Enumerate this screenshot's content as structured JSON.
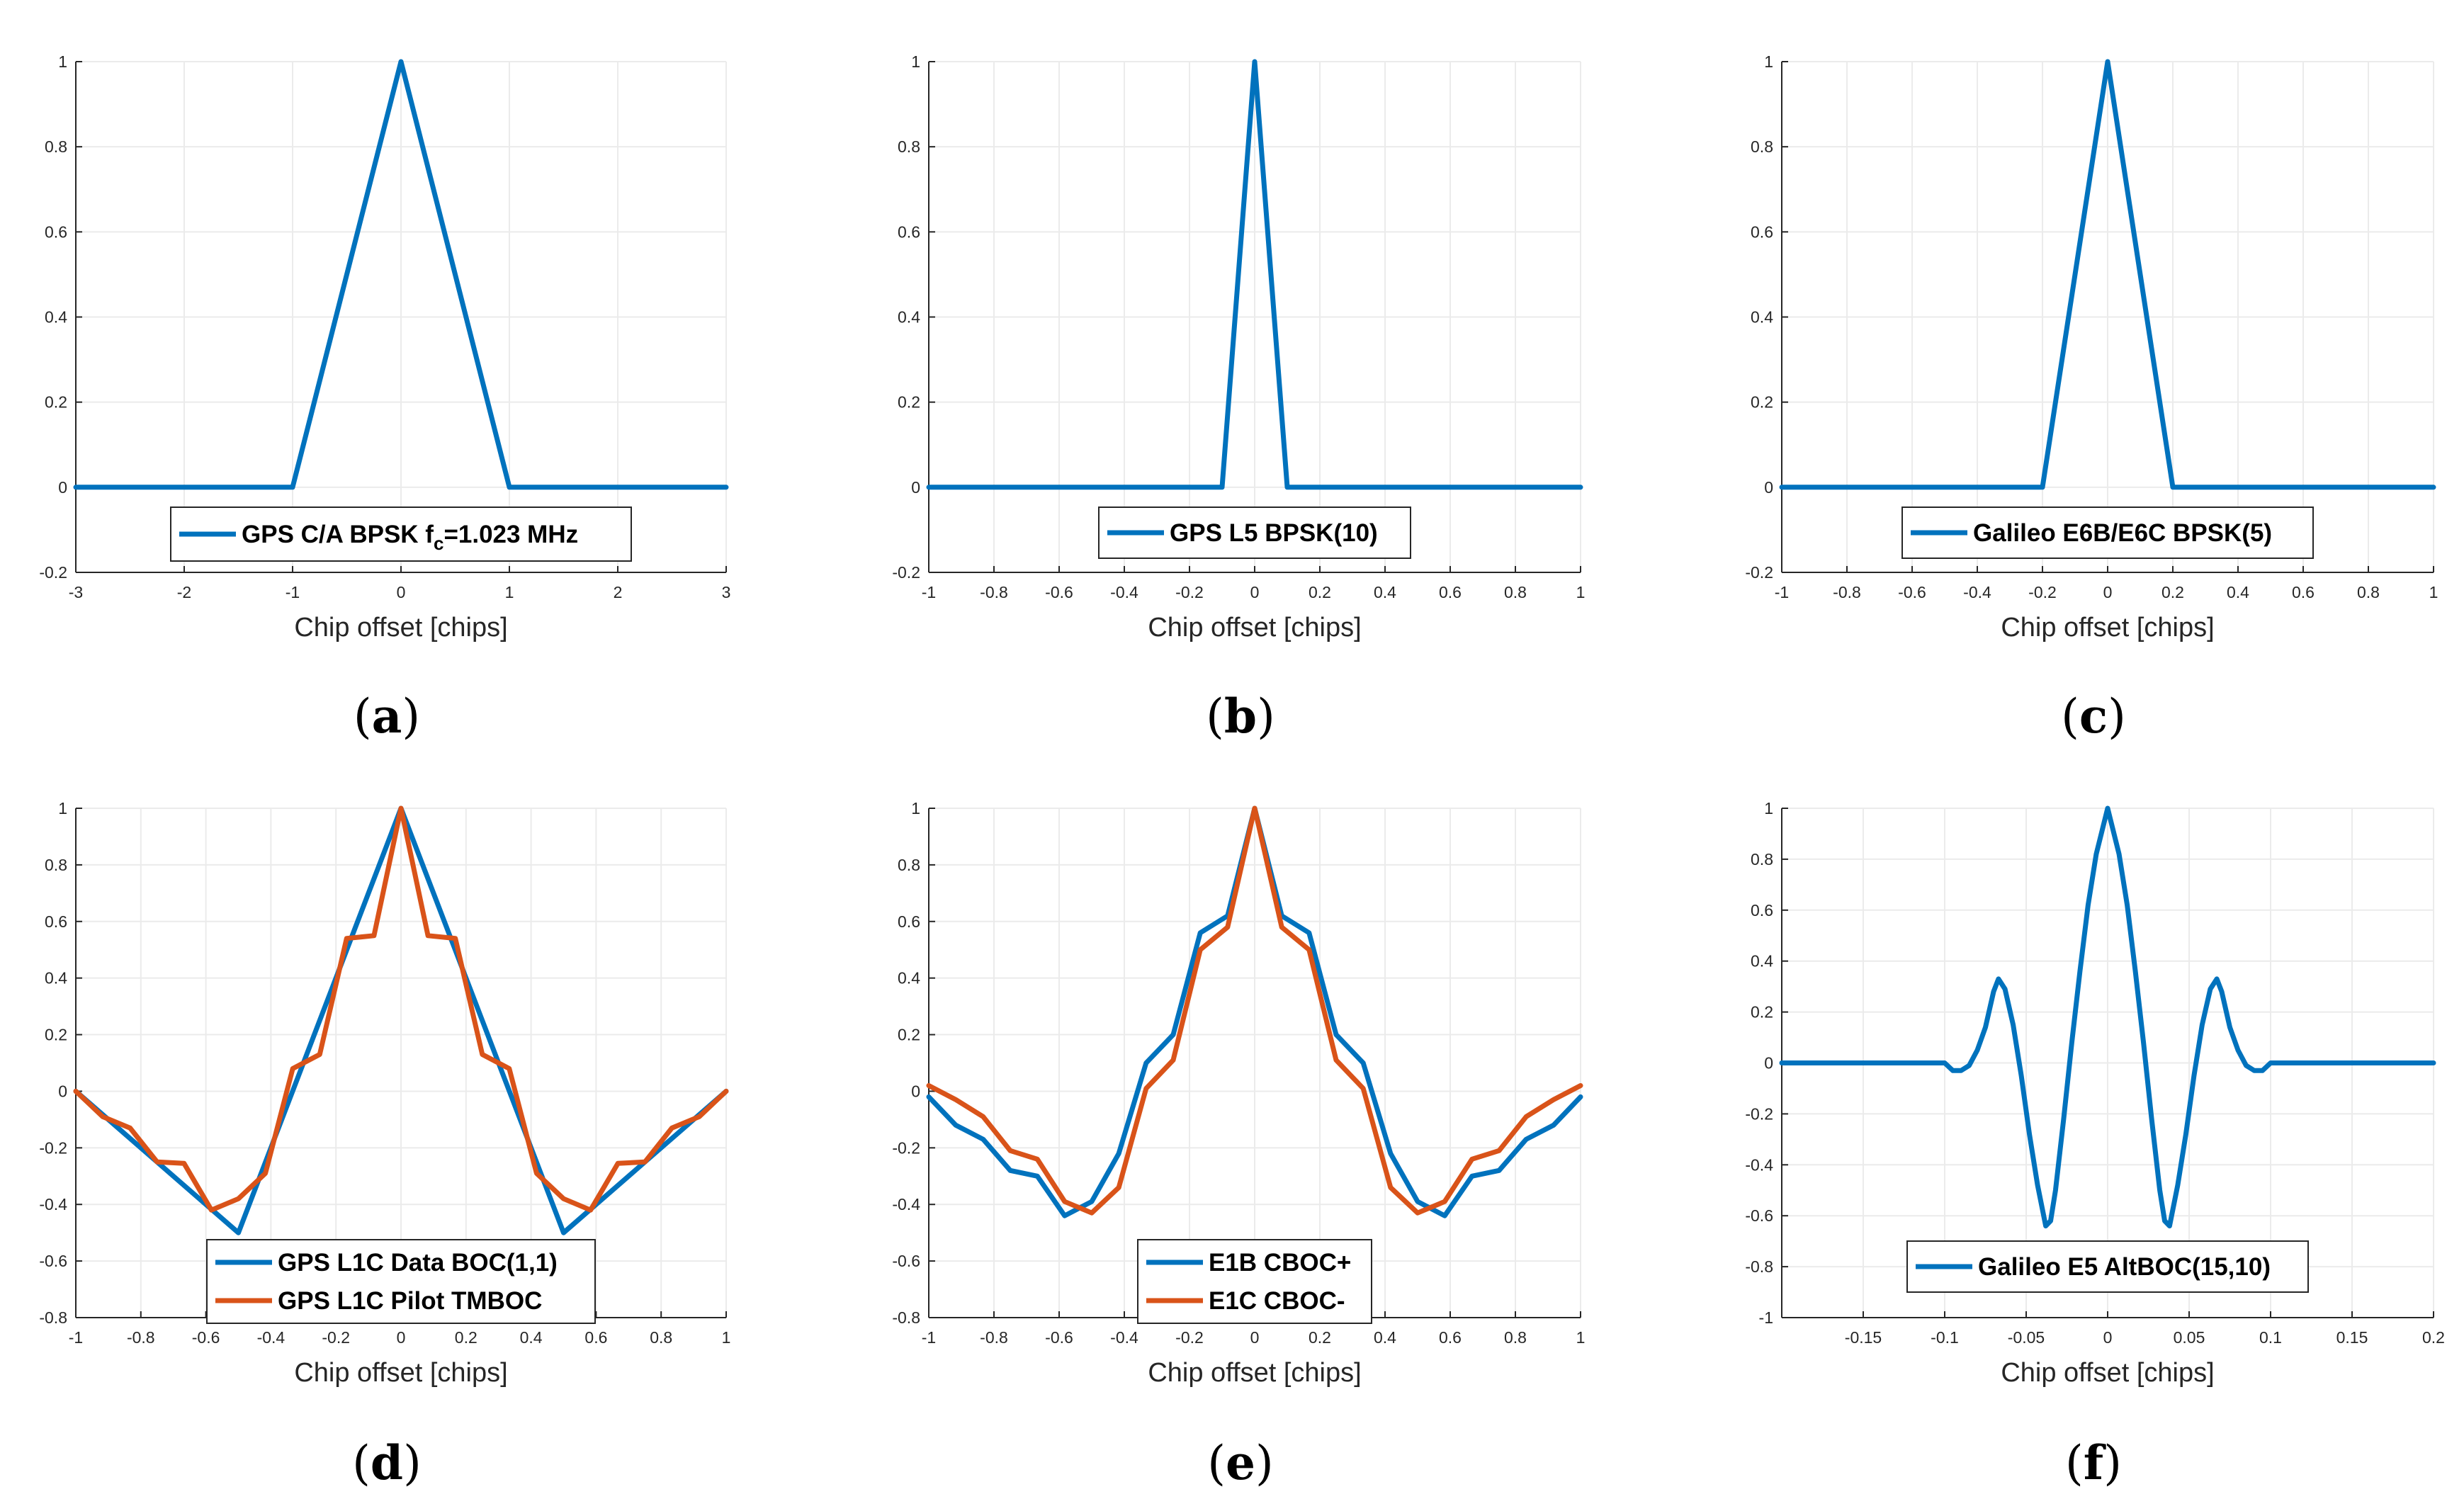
{
  "figure": {
    "colors": {
      "series1": "#0072BD",
      "series2": "#D95319",
      "axis": "#262626",
      "grid": "#ebebeb"
    }
  },
  "chart_data": [
    {
      "id": "a",
      "type": "line",
      "caption": {
        "open": "(",
        "letter": "a",
        "close": ")"
      },
      "xlabel": "Chip offset [chips]",
      "ylabel": "",
      "xlim": [
        -3,
        3
      ],
      "ylim": [
        -0.2,
        1
      ],
      "xticks": [
        -3,
        -2,
        -1,
        0,
        1,
        2,
        3
      ],
      "yticks": [
        -0.2,
        0,
        0.2,
        0.4,
        0.6,
        0.8,
        1
      ],
      "grid": true,
      "legend_position": "bottom-center",
      "series": [
        {
          "name": "GPS C/A BPSK f_c=1.023 MHz",
          "legend": {
            "before": "GPS C/A BPSK f",
            "sub": "c",
            "after": "=1.023 MHz"
          },
          "color": "#0072BD",
          "x": [
            -3,
            -1,
            0,
            1,
            3
          ],
          "y": [
            0,
            0,
            1,
            0,
            0
          ]
        }
      ]
    },
    {
      "id": "b",
      "type": "line",
      "caption": {
        "open": "(",
        "letter": "b",
        "close": ")"
      },
      "xlabel": "Chip offset [chips]",
      "ylabel": "",
      "xlim": [
        -1,
        1
      ],
      "ylim": [
        -0.2,
        1
      ],
      "xticks": [
        -1,
        -0.8,
        -0.6,
        -0.4,
        -0.2,
        0,
        0.2,
        0.4,
        0.6,
        0.8,
        1
      ],
      "yticks": [
        -0.2,
        0,
        0.2,
        0.4,
        0.6,
        0.8,
        1
      ],
      "grid": true,
      "legend_position": "bottom-center",
      "series": [
        {
          "name": "GPS L5 BPSK(10)",
          "color": "#0072BD",
          "x": [
            -1,
            -0.1,
            0,
            0.1,
            1
          ],
          "y": [
            0,
            0,
            1,
            0,
            0
          ]
        }
      ]
    },
    {
      "id": "c",
      "type": "line",
      "caption": {
        "open": "(",
        "letter": "c",
        "close": ")"
      },
      "xlabel": "Chip offset [chips]",
      "ylabel": "",
      "xlim": [
        -1,
        1
      ],
      "ylim": [
        -0.2,
        1
      ],
      "xticks": [
        -1,
        -0.8,
        -0.6,
        -0.4,
        -0.2,
        0,
        0.2,
        0.4,
        0.6,
        0.8,
        1
      ],
      "yticks": [
        -0.2,
        0,
        0.2,
        0.4,
        0.6,
        0.8,
        1
      ],
      "grid": true,
      "legend_position": "bottom-center",
      "series": [
        {
          "name": "Galileo E6B/E6C BPSK(5)",
          "color": "#0072BD",
          "x": [
            -1,
            -0.2,
            0,
            0.2,
            1
          ],
          "y": [
            0,
            0,
            1,
            0,
            0
          ]
        }
      ]
    },
    {
      "id": "d",
      "type": "line",
      "caption": {
        "open": "(",
        "letter": "d",
        "close": ")"
      },
      "xlabel": "Chip offset [chips]",
      "ylabel": "",
      "xlim": [
        -1,
        1
      ],
      "ylim": [
        -0.8,
        1
      ],
      "xticks": [
        -1,
        -0.8,
        -0.6,
        -0.4,
        -0.2,
        0,
        0.2,
        0.4,
        0.6,
        0.8,
        1
      ],
      "yticks": [
        -0.8,
        -0.6,
        -0.4,
        -0.2,
        0,
        0.2,
        0.4,
        0.6,
        0.8,
        1
      ],
      "grid": true,
      "legend_position": "bottom-center",
      "series": [
        {
          "name": "GPS L1C Data BOC(1,1)",
          "color": "#0072BD",
          "x": [
            -1,
            -0.5,
            0,
            0.5,
            1
          ],
          "y": [
            0,
            -0.5,
            1,
            -0.5,
            0
          ]
        },
        {
          "name": "GPS L1C Pilot TMBOC",
          "color": "#D95319",
          "x": [
            -1,
            -0.917,
            -0.833,
            -0.75,
            -0.667,
            -0.583,
            -0.5,
            -0.417,
            -0.333,
            -0.25,
            -0.167,
            -0.083,
            0,
            0.083,
            0.167,
            0.25,
            0.333,
            0.417,
            0.5,
            0.583,
            0.667,
            0.75,
            0.833,
            0.917,
            1
          ],
          "y": [
            0,
            -0.09,
            -0.13,
            -0.25,
            -0.255,
            -0.42,
            -0.38,
            -0.29,
            0.08,
            0.13,
            0.54,
            0.55,
            1,
            0.55,
            0.54,
            0.13,
            0.08,
            -0.29,
            -0.38,
            -0.42,
            -0.255,
            -0.25,
            -0.13,
            -0.09,
            0
          ]
        }
      ]
    },
    {
      "id": "e",
      "type": "line",
      "caption": {
        "open": "(",
        "letter": "e",
        "close": ")"
      },
      "xlabel": "Chip offset [chips]",
      "ylabel": "",
      "xlim": [
        -1,
        1
      ],
      "ylim": [
        -0.8,
        1
      ],
      "xticks": [
        -1,
        -0.8,
        -0.6,
        -0.4,
        -0.2,
        0,
        0.2,
        0.4,
        0.6,
        0.8,
        1
      ],
      "yticks": [
        -0.8,
        -0.6,
        -0.4,
        -0.2,
        0,
        0.2,
        0.4,
        0.6,
        0.8,
        1
      ],
      "grid": true,
      "legend_position": "bottom-center",
      "series": [
        {
          "name": "E1B CBOC+",
          "color": "#0072BD",
          "x": [
            -1,
            -0.917,
            -0.833,
            -0.75,
            -0.667,
            -0.583,
            -0.5,
            -0.417,
            -0.333,
            -0.25,
            -0.167,
            -0.083,
            0,
            0.083,
            0.167,
            0.25,
            0.333,
            0.417,
            0.5,
            0.583,
            0.667,
            0.75,
            0.833,
            0.917,
            1
          ],
          "y": [
            -0.02,
            -0.12,
            -0.17,
            -0.28,
            -0.3,
            -0.44,
            -0.39,
            -0.22,
            0.1,
            0.2,
            0.56,
            0.62,
            1,
            0.62,
            0.56,
            0.2,
            0.1,
            -0.22,
            -0.39,
            -0.44,
            -0.3,
            -0.28,
            -0.17,
            -0.12,
            -0.02
          ]
        },
        {
          "name": "E1C CBOC-",
          "color": "#D95319",
          "x": [
            -1,
            -0.917,
            -0.833,
            -0.75,
            -0.667,
            -0.583,
            -0.5,
            -0.417,
            -0.333,
            -0.25,
            -0.167,
            -0.083,
            0,
            0.083,
            0.167,
            0.25,
            0.333,
            0.417,
            0.5,
            0.583,
            0.667,
            0.75,
            0.833,
            0.917,
            1
          ],
          "y": [
            0.02,
            -0.03,
            -0.09,
            -0.21,
            -0.24,
            -0.39,
            -0.43,
            -0.34,
            0.01,
            0.11,
            0.5,
            0.58,
            1,
            0.58,
            0.5,
            0.11,
            0.01,
            -0.34,
            -0.43,
            -0.39,
            -0.24,
            -0.21,
            -0.09,
            -0.03,
            0.02
          ]
        }
      ]
    },
    {
      "id": "f",
      "type": "line",
      "caption": {
        "open": "(",
        "letter": "f",
        "close": ")"
      },
      "xlabel": "Chip offset [chips]",
      "ylabel": "",
      "xlim": [
        -0.2,
        0.2
      ],
      "ylim": [
        -1,
        1
      ],
      "xticks": [
        -0.15,
        -0.1,
        -0.05,
        0,
        0.05,
        0.1,
        0.15,
        0.2
      ],
      "yticks": [
        -1,
        -0.8,
        -0.6,
        -0.4,
        -0.2,
        0,
        0.2,
        0.4,
        0.6,
        0.8,
        1
      ],
      "grid": true,
      "legend_position": "bottom-center",
      "series": [
        {
          "name": "Galileo E5 AltBOC(15,10)",
          "color": "#0072BD",
          "x": [
            -0.2,
            -0.1,
            -0.095,
            -0.09,
            -0.085,
            -0.08,
            -0.075,
            -0.07,
            -0.067,
            -0.063,
            -0.058,
            -0.053,
            -0.048,
            -0.043,
            -0.038,
            -0.035,
            -0.032,
            -0.027,
            -0.022,
            -0.017,
            -0.012,
            -0.007,
            0,
            0.007,
            0.012,
            0.017,
            0.022,
            0.027,
            0.032,
            0.035,
            0.038,
            0.043,
            0.048,
            0.053,
            0.058,
            0.063,
            0.067,
            0.07,
            0.075,
            0.08,
            0.085,
            0.09,
            0.095,
            0.1,
            0.2
          ],
          "y": [
            0,
            0,
            -0.03,
            -0.03,
            -0.01,
            0.05,
            0.14,
            0.28,
            0.33,
            0.29,
            0.15,
            -0.05,
            -0.28,
            -0.48,
            -0.64,
            -0.62,
            -0.5,
            -0.22,
            0.08,
            0.36,
            0.62,
            0.82,
            1,
            0.82,
            0.62,
            0.36,
            0.08,
            -0.22,
            -0.5,
            -0.62,
            -0.64,
            -0.48,
            -0.28,
            -0.05,
            0.15,
            0.29,
            0.33,
            0.28,
            0.14,
            0.05,
            -0.01,
            -0.03,
            -0.03,
            0,
            0
          ]
        }
      ]
    }
  ]
}
